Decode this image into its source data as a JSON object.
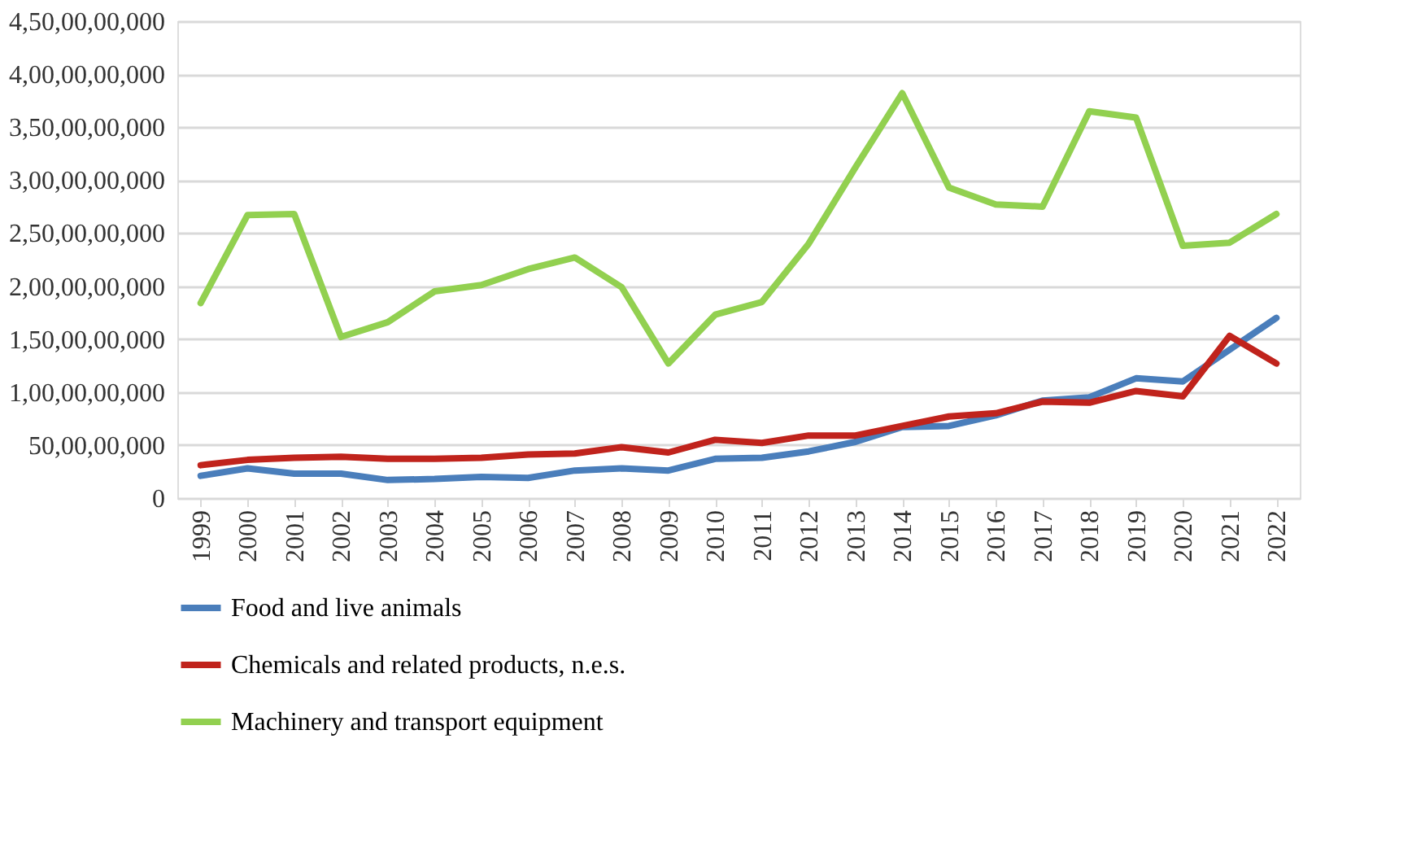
{
  "chart_data": {
    "type": "line",
    "categories": [
      "1999",
      "2000",
      "2001",
      "2002",
      "2003",
      "2004",
      "2005",
      "2006",
      "2007",
      "2008",
      "2009",
      "2010",
      "2011",
      "2012",
      "2013",
      "2014",
      "2015",
      "2016",
      "2017",
      "2018",
      "2019",
      "2020",
      "2021",
      "2022"
    ],
    "series": [
      {
        "name": "Food and live animals",
        "color": "#4a7ebb",
        "values": [
          210000000,
          280000000,
          230000000,
          230000000,
          170000000,
          180000000,
          200000000,
          190000000,
          260000000,
          280000000,
          260000000,
          370000000,
          380000000,
          440000000,
          530000000,
          670000000,
          680000000,
          780000000,
          920000000,
          950000000,
          1130000000,
          1100000000,
          1400000000,
          1700000000
        ]
      },
      {
        "name": "Chemicals and related products, n.e.s.",
        "color": "#c0231c",
        "values": [
          310000000,
          360000000,
          380000000,
          390000000,
          370000000,
          370000000,
          380000000,
          410000000,
          420000000,
          480000000,
          430000000,
          550000000,
          520000000,
          590000000,
          590000000,
          680000000,
          770000000,
          800000000,
          910000000,
          900000000,
          1010000000,
          960000000,
          1530000000,
          1270000000
        ]
      },
      {
        "name": "Machinery and transport equipment",
        "color": "#92d050",
        "values": [
          1840000000,
          2670000000,
          2680000000,
          1520000000,
          1660000000,
          1950000000,
          2010000000,
          2160000000,
          2270000000,
          1990000000,
          1270000000,
          1730000000,
          1850000000,
          2400000000,
          3120000000,
          3820000000,
          2930000000,
          2770000000,
          2750000000,
          3650000000,
          3590000000,
          2380000000,
          2410000000,
          2680000000
        ]
      }
    ],
    "ylim": [
      0,
      4500000000
    ],
    "yticks": [
      0,
      {
        "value": 500000000,
        "label": "50,00,00,000"
      },
      {
        "value": 1000000000,
        "label": "1,00,00,00,000"
      },
      {
        "value": 1500000000,
        "label": "1,50,00,00,000"
      },
      {
        "value": 2000000000,
        "label": "2,00,00,00,000"
      },
      {
        "value": 2500000000,
        "label": "2,50,00,00,000"
      },
      {
        "value": 3000000000,
        "label": "3,00,00,00,000"
      },
      {
        "value": 3500000000,
        "label": "3,50,00,00,000"
      },
      {
        "value": 4000000000,
        "label": "4,00,00,00,000"
      },
      {
        "value": 4500000000,
        "label": "4,50,00,00,000"
      }
    ],
    "grid": "y",
    "legend": "bottom",
    "marker": "none",
    "line_style": "solid"
  }
}
